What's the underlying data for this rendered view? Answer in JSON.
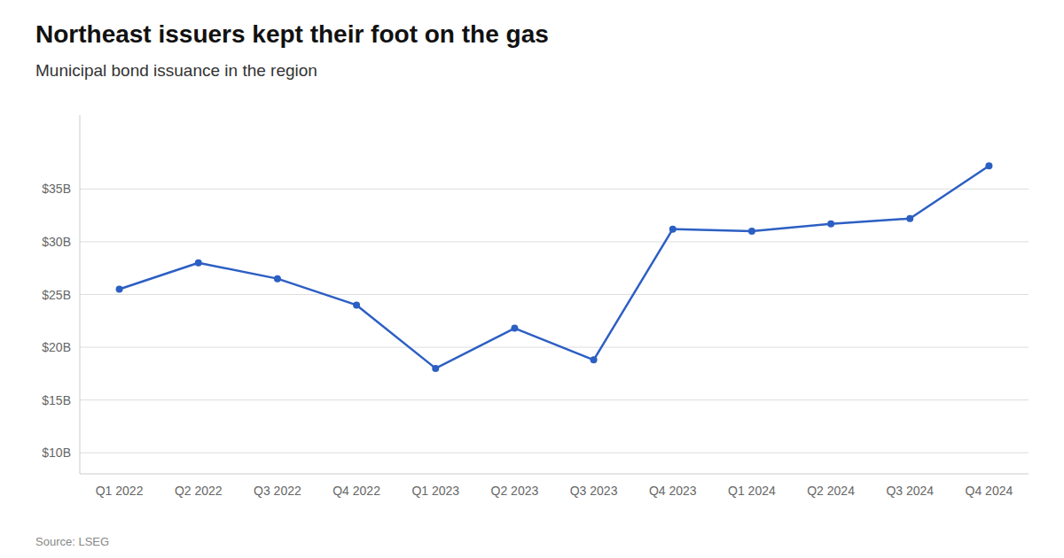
{
  "chart_data": {
    "type": "line",
    "title": "Northeast issuers kept their foot on the gas",
    "subtitle": "Municipal bond issuance in the region",
    "source": "Source: LSEG",
    "categories": [
      "Q1 2022",
      "Q2 2022",
      "Q3 2022",
      "Q4 2022",
      "Q1 2023",
      "Q2 2023",
      "Q3 2023",
      "Q4 2023",
      "Q1 2024",
      "Q2 2024",
      "Q3 2024",
      "Q4 2024"
    ],
    "values": [
      25.5,
      28.0,
      26.5,
      24.0,
      18.0,
      21.8,
      18.8,
      31.2,
      31.0,
      31.7,
      32.2,
      37.2
    ],
    "color": "#2c5fc3",
    "marker": "circle",
    "ylim": [
      8,
      42
    ],
    "yticks": [
      {
        "value": 10,
        "label": "$10B"
      },
      {
        "value": 15,
        "label": "$15B"
      },
      {
        "value": 20,
        "label": "$20B"
      },
      {
        "value": 25,
        "label": "$25B"
      },
      {
        "value": 30,
        "label": "$30B"
      },
      {
        "value": 35,
        "label": "$35B"
      }
    ],
    "grid": true
  }
}
